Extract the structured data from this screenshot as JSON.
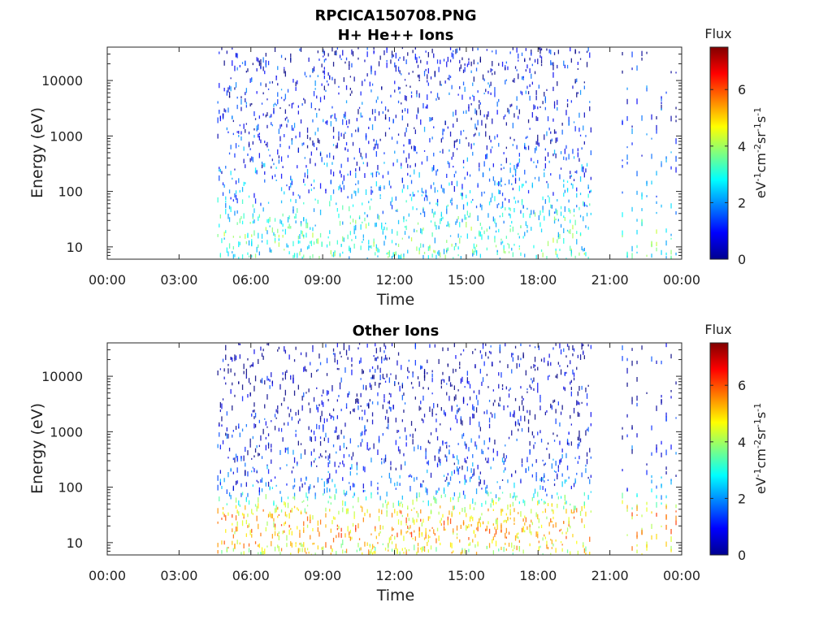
{
  "figure_title": "RPCICA150708.PNG",
  "chart_data": [
    {
      "type": "heatmap",
      "title": "H+ He++ Ions",
      "xlabel": "Time",
      "ylabel": "Energy (eV)",
      "y_scale": "log",
      "ylim": [
        6,
        40000
      ],
      "xlim_hours": [
        0,
        24
      ],
      "x_ticks": [
        "00:00",
        "03:00",
        "06:00",
        "09:00",
        "12:00",
        "15:00",
        "18:00",
        "21:00",
        "00:00"
      ],
      "y_ticks": [
        10,
        100,
        1000,
        10000
      ],
      "y_tick_labels": [
        "10",
        "100",
        "1000",
        "10000"
      ],
      "data_segments_hours": [
        [
          4.6,
          20.2
        ],
        [
          21.5,
          23.9
        ]
      ],
      "colorbar": {
        "title": "Flux",
        "label": "eV-1cm-2sr-1s-1",
        "range": [
          0,
          7.5
        ],
        "ticks": [
          0,
          2,
          4,
          6
        ],
        "colormap": "jet"
      },
      "flux_profile": [
        {
          "energy_eV": 7,
          "flux": 3.0
        },
        {
          "energy_eV": 20,
          "flux": 3.2
        },
        {
          "energy_eV": 40,
          "flux": 2.6
        },
        {
          "energy_eV": 100,
          "flux": 1.8
        },
        {
          "energy_eV": 1000,
          "flux": 1.0
        },
        {
          "energy_eV": 10000,
          "flux": 0.9
        },
        {
          "energy_eV": 30000,
          "flux": 0.5
        }
      ]
    },
    {
      "type": "heatmap",
      "title": "Other Ions",
      "xlabel": "Time",
      "ylabel": "Energy (eV)",
      "y_scale": "log",
      "ylim": [
        6,
        40000
      ],
      "xlim_hours": [
        0,
        24
      ],
      "x_ticks": [
        "00:00",
        "03:00",
        "06:00",
        "09:00",
        "12:00",
        "15:00",
        "18:00",
        "21:00",
        "00:00"
      ],
      "y_ticks": [
        10,
        100,
        1000,
        10000
      ],
      "y_tick_labels": [
        "10",
        "100",
        "1000",
        "10000"
      ],
      "data_segments_hours": [
        [
          4.6,
          20.2
        ],
        [
          21.5,
          23.9
        ]
      ],
      "colorbar": {
        "title": "Flux",
        "label": "eV-1cm-2sr-1s-1",
        "range": [
          0,
          7.5
        ],
        "ticks": [
          0,
          2,
          4,
          6
        ],
        "colormap": "jet"
      },
      "flux_profile": [
        {
          "energy_eV": 7,
          "flux": 4.5
        },
        {
          "energy_eV": 15,
          "flux": 5.2
        },
        {
          "energy_eV": 35,
          "flux": 5.0
        },
        {
          "energy_eV": 100,
          "flux": 1.5
        },
        {
          "energy_eV": 1000,
          "flux": 0.6
        },
        {
          "energy_eV": 10000,
          "flux": 0.4
        }
      ]
    }
  ]
}
